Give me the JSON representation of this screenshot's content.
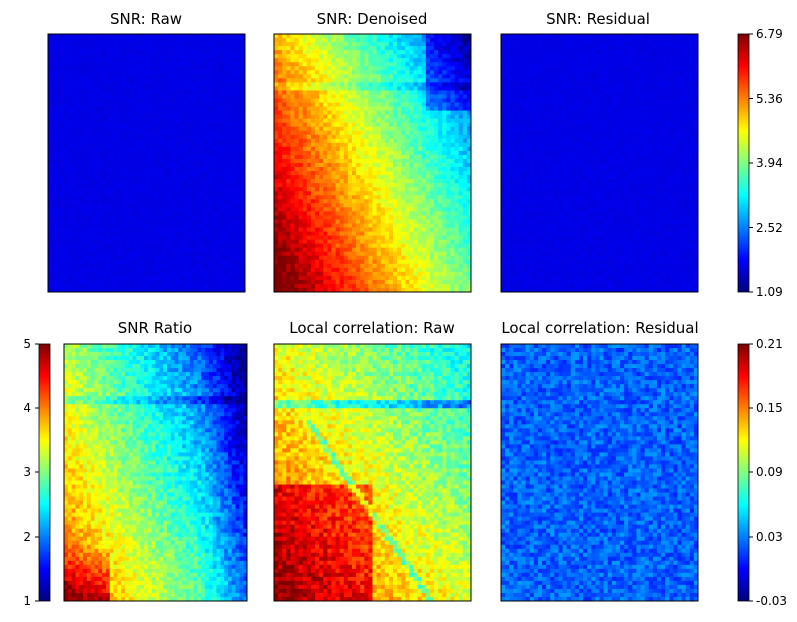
{
  "chart_data": [
    {
      "type": "heatmap",
      "title": "SNR: Raw",
      "field": "uniform_low",
      "colorbar": "snr"
    },
    {
      "type": "heatmap",
      "title": "SNR: Denoised",
      "field": "snr_denoised",
      "colorbar": "snr"
    },
    {
      "type": "heatmap",
      "title": "SNR: Residual",
      "field": "uniform_low",
      "colorbar": "snr"
    },
    {
      "type": "heatmap",
      "title": "SNR Ratio",
      "field": "snr_ratio",
      "colorbar": "ratio",
      "y_axis": {
        "ticks": [
          "5",
          "4",
          "3",
          "2",
          "1"
        ],
        "ylim": [
          1,
          5
        ]
      }
    },
    {
      "type": "heatmap",
      "title": "Local correlation: Raw",
      "field": "corr_raw",
      "colorbar": "corr"
    },
    {
      "type": "heatmap",
      "title": "Local correlation: Residual",
      "field": "corr_residual",
      "colorbar": "corr"
    }
  ],
  "colorbars": {
    "snr": {
      "colormap": "jet",
      "ticks": [
        "6.79",
        "5.36",
        "3.94",
        "2.52",
        "1.09"
      ],
      "min": 1.09,
      "max": 6.79
    },
    "corr": {
      "colormap": "jet",
      "ticks": [
        "0.21",
        "0.15",
        "0.09",
        "0.03",
        "-0.03"
      ],
      "min": -0.03,
      "max": 0.21
    },
    "ratio": {
      "colormap": "jet",
      "ticks": [
        "5",
        "4",
        "3",
        "2",
        "1"
      ],
      "min": 1,
      "max": 5
    }
  }
}
